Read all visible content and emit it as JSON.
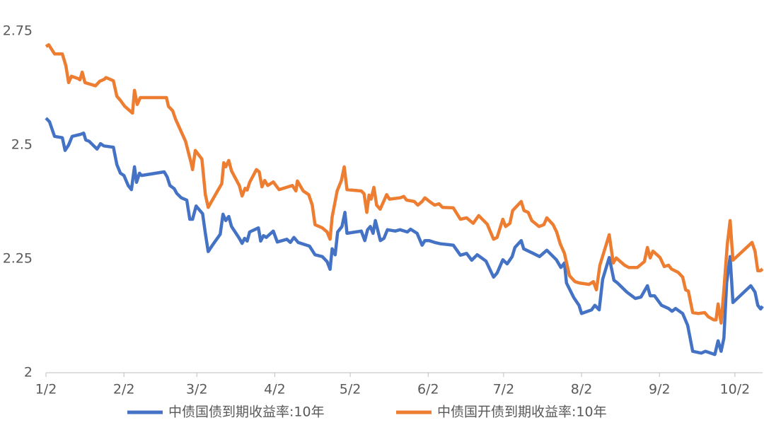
{
  "chart_data": {
    "type": "line",
    "xlim": [
      0,
      285
    ],
    "xticks": [
      {
        "value": 0,
        "label": "1/2"
      },
      {
        "value": 31,
        "label": "2/2"
      },
      {
        "value": 60,
        "label": "3/2"
      },
      {
        "value": 91,
        "label": "4/2"
      },
      {
        "value": 121,
        "label": "5/2"
      },
      {
        "value": 152,
        "label": "6/2"
      },
      {
        "value": 182,
        "label": "7/2"
      },
      {
        "value": 213,
        "label": "8/2"
      },
      {
        "value": 244,
        "label": "9/2"
      },
      {
        "value": 274,
        "label": "10/2"
      }
    ],
    "ylim": [
      2,
      2.75
    ],
    "yticks": [
      2,
      2.25,
      2.5,
      2.75
    ],
    "grid": false,
    "legend": "bottom",
    "series": [
      {
        "name": "中债国债到期收益率:10年",
        "color": "#4472c4",
        "x": [
          0,
          1.4,
          3.4,
          6.5,
          7.6,
          9,
          10.4,
          13.5,
          15,
          15.8,
          17.2,
          20.3,
          21.7,
          23,
          26.8,
          28.2,
          29.6,
          31,
          32.7,
          34,
          35.2,
          36,
          37.2,
          38,
          47,
          48.2,
          49.3,
          51,
          52,
          53.8,
          56,
          57.2,
          58.3,
          59.7,
          62.3,
          63.4,
          64.5,
          66.2,
          69.3,
          70.4,
          71.5,
          72.7,
          73.8,
          76.9,
          78,
          79,
          80,
          81,
          84.5,
          85.4,
          86.5,
          87.6,
          90.4,
          92,
          95.8,
          97.2,
          98.6,
          100.3,
          104.8,
          107,
          109.9,
          111.8,
          113,
          113.8,
          115,
          116,
          117.7,
          118.9,
          119.7,
          125.4,
          126.8,
          127.9,
          129,
          130.1,
          131,
          133,
          134.4,
          135.8,
          138.9,
          140.8,
          143.7,
          145,
          147.6,
          149.6,
          150.7,
          152.4,
          154.6,
          156.9,
          162,
          164.8,
          167.3,
          169.3,
          171.5,
          175,
          178,
          179.4,
          181.7,
          183.4,
          185.4,
          186.5,
          189,
          190,
          193.8,
          196.3,
          199.2,
          203,
          204.8,
          206.2,
          207,
          209.9,
          212,
          213,
          217,
          218.3,
          220,
          221.4,
          224,
          225.9,
          227.3,
          231,
          234.4,
          236.6,
          239.2,
          240.3,
          242,
          244.8,
          247.6,
          249,
          250.4,
          253.2,
          255.2,
          257.2,
          260.6,
          262.3,
          266,
          267.3,
          268.5,
          269.6,
          270.7,
          272.1,
          273.2,
          280.3,
          282,
          283.1,
          284.2,
          285
        ],
        "values": [
          2.559,
          2.551,
          2.519,
          2.516,
          2.488,
          2.5,
          2.519,
          2.523,
          2.526,
          2.511,
          2.508,
          2.491,
          2.503,
          2.498,
          2.495,
          2.457,
          2.438,
          2.433,
          2.411,
          2.402,
          2.452,
          2.418,
          2.438,
          2.433,
          2.441,
          2.43,
          2.411,
          2.404,
          2.394,
          2.384,
          2.379,
          2.337,
          2.337,
          2.366,
          2.349,
          2.306,
          2.266,
          2.28,
          2.304,
          2.348,
          2.334,
          2.343,
          2.321,
          2.295,
          2.284,
          2.295,
          2.289,
          2.309,
          2.318,
          2.289,
          2.301,
          2.297,
          2.311,
          2.287,
          2.293,
          2.286,
          2.297,
          2.286,
          2.278,
          2.259,
          2.255,
          2.244,
          2.227,
          2.272,
          2.259,
          2.309,
          2.321,
          2.352,
          2.306,
          2.311,
          2.29,
          2.314,
          2.321,
          2.306,
          2.334,
          2.29,
          2.295,
          2.314,
          2.311,
          2.314,
          2.309,
          2.315,
          2.306,
          2.28,
          2.29,
          2.29,
          2.286,
          2.283,
          2.28,
          2.258,
          2.262,
          2.247,
          2.259,
          2.245,
          2.21,
          2.219,
          2.248,
          2.239,
          2.255,
          2.275,
          2.29,
          2.272,
          2.262,
          2.255,
          2.269,
          2.248,
          2.231,
          2.241,
          2.197,
          2.165,
          2.148,
          2.13,
          2.138,
          2.148,
          2.138,
          2.205,
          2.253,
          2.203,
          2.197,
          2.177,
          2.163,
          2.166,
          2.191,
          2.169,
          2.169,
          2.148,
          2.141,
          2.135,
          2.141,
          2.13,
          2.104,
          2.047,
          2.043,
          2.047,
          2.04,
          2.07,
          2.047,
          2.076,
          2.197,
          2.255,
          2.154,
          2.191,
          2.177,
          2.148,
          2.14,
          2.146
        ]
      },
      {
        "name": "中债国开债到期收益率:10年",
        "color": "#ed7d31",
        "x": [
          0,
          1.1,
          3.4,
          6.5,
          7.9,
          9,
          10.1,
          12.7,
          13.5,
          14.4,
          15.5,
          19.7,
          21.4,
          23.1,
          23.9,
          26.8,
          28.2,
          29.6,
          31.3,
          34.4,
          35.2,
          36.3,
          37.5,
          47.9,
          48.7,
          50.4,
          51.5,
          55.5,
          57.7,
          58.3,
          59.4,
          62,
          63.4,
          64.5,
          67.6,
          69.9,
          70.7,
          71.5,
          72.7,
          73.8,
          76.9,
          78,
          79.2,
          80,
          81,
          83.7,
          84.8,
          85.9,
          87,
          88.2,
          90.4,
          92.7,
          98,
          99.4,
          100,
          102.3,
          104.5,
          105.9,
          107,
          109.9,
          111.8,
          113,
          113.8,
          115.8,
          117.5,
          118.6,
          119.7,
          125.4,
          126.5,
          127.6,
          128.5,
          129.3,
          130.4,
          131.5,
          132.9,
          135.5,
          136.6,
          140.8,
          142.3,
          143.4,
          146.5,
          147.9,
          149.6,
          150.7,
          153,
          154.6,
          156.3,
          157.7,
          162,
          164.8,
          167.3,
          169.9,
          172.1,
          175.5,
          178,
          179.4,
          181.7,
          182.8,
          184.5,
          185.6,
          189,
          190.1,
          191.8,
          193.2,
          196.1,
          198,
          199.2,
          201.7,
          203.1,
          204.5,
          206.2,
          208.2,
          210.4,
          212.1,
          216,
          217.7,
          218.9,
          220.3,
          224,
          225.6,
          226.8,
          230.1,
          231.8,
          235.2,
          238,
          239.2,
          240.3,
          241.4,
          244.2,
          245.9,
          247.6,
          248.7,
          251.5,
          253.2,
          254.4,
          255.5,
          257.2,
          259.4,
          262,
          263.4,
          265.6,
          266.5,
          267.3,
          268.5,
          269.6,
          271,
          272.1,
          273.2,
          280.8,
          282,
          283.1,
          284.2,
          285
        ],
        "values": [
          2.716,
          2.72,
          2.7,
          2.7,
          2.674,
          2.637,
          2.651,
          2.646,
          2.643,
          2.66,
          2.637,
          2.63,
          2.64,
          2.644,
          2.648,
          2.641,
          2.607,
          2.598,
          2.585,
          2.57,
          2.62,
          2.589,
          2.604,
          2.604,
          2.585,
          2.575,
          2.557,
          2.508,
          2.461,
          2.446,
          2.488,
          2.469,
          2.391,
          2.363,
          2.393,
          2.415,
          2.461,
          2.452,
          2.466,
          2.443,
          2.411,
          2.388,
          2.405,
          2.401,
          2.418,
          2.446,
          2.441,
          2.408,
          2.422,
          2.411,
          2.419,
          2.402,
          2.411,
          2.399,
          2.421,
          2.399,
          2.391,
          2.368,
          2.325,
          2.318,
          2.309,
          2.293,
          2.342,
          2.399,
          2.422,
          2.452,
          2.402,
          2.399,
          2.393,
          2.352,
          2.39,
          2.381,
          2.407,
          2.368,
          2.359,
          2.391,
          2.381,
          2.384,
          2.387,
          2.379,
          2.376,
          2.368,
          2.376,
          2.384,
          2.374,
          2.368,
          2.371,
          2.363,
          2.362,
          2.337,
          2.34,
          2.328,
          2.345,
          2.326,
          2.293,
          2.297,
          2.337,
          2.321,
          2.328,
          2.356,
          2.376,
          2.356,
          2.352,
          2.334,
          2.321,
          2.325,
          2.34,
          2.325,
          2.309,
          2.283,
          2.262,
          2.213,
          2.2,
          2.197,
          2.194,
          2.2,
          2.182,
          2.236,
          2.303,
          2.241,
          2.252,
          2.236,
          2.231,
          2.231,
          2.244,
          2.275,
          2.252,
          2.267,
          2.253,
          2.233,
          2.236,
          2.228,
          2.22,
          2.21,
          2.182,
          2.179,
          2.132,
          2.13,
          2.132,
          2.123,
          2.116,
          2.116,
          2.151,
          2.109,
          2.182,
          2.283,
          2.334,
          2.247,
          2.286,
          2.267,
          2.224,
          2.224,
          2.228
        ]
      }
    ]
  }
}
